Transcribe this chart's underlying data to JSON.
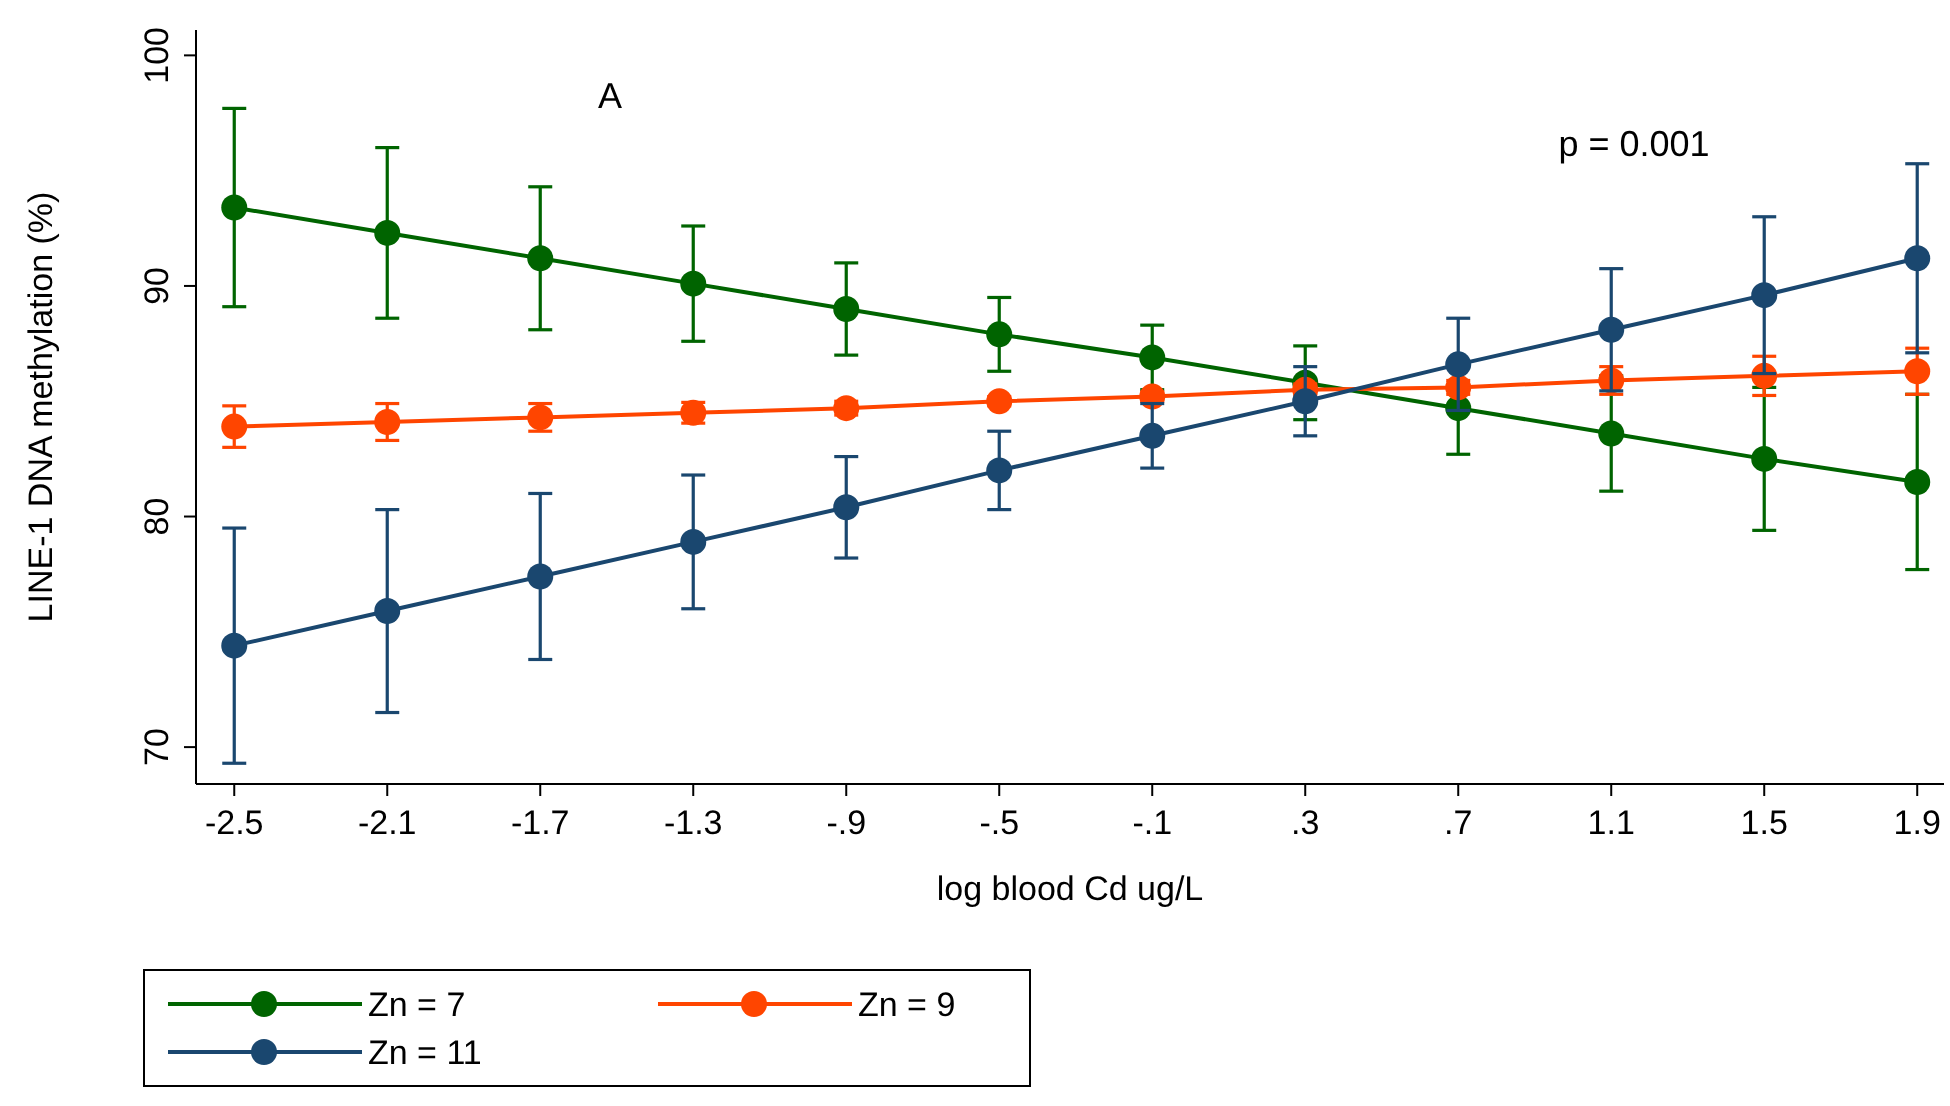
{
  "chart_data": {
    "type": "line",
    "xlabel": "log blood Cd ug/L",
    "ylabel": "LINE-1 DNA methylation (%)",
    "x": [
      -2.5,
      -2.1,
      -1.7,
      -1.3,
      -0.9,
      -0.5,
      -0.1,
      0.3,
      0.7,
      1.1,
      1.5,
      1.9
    ],
    "xlim": [
      -2.6,
      1.97
    ],
    "xticks": [
      -2.5,
      -2.1,
      -1.7,
      -1.3,
      {
        "value": -0.9,
        "label": "-.9"
      },
      {
        "value": -0.5,
        "label": "-.5"
      },
      {
        "value": -0.1,
        "label": "-.1"
      },
      {
        "value": 0.3,
        "label": ".3"
      },
      {
        "value": 0.7,
        "label": ".7"
      },
      1.1,
      1.5,
      1.9
    ],
    "ylim": [
      68.4,
      101.1
    ],
    "yticks": [
      70,
      80,
      90,
      100
    ],
    "marker": "circle",
    "legend": "bottom left",
    "grid": false,
    "annotations": [
      "A",
      "p = 0.001"
    ],
    "series": [
      {
        "name": "Zn = 7",
        "color": "#006400",
        "values": [
          93.4,
          92.3,
          91.2,
          90.1,
          89.0,
          87.9,
          86.9,
          85.8,
          84.7,
          83.6,
          82.5,
          81.5
        ],
        "errors": [
          4.3,
          3.7,
          3.1,
          2.5,
          2.0,
          1.6,
          1.4,
          1.6,
          2.0,
          2.5,
          3.1,
          3.8
        ]
      },
      {
        "name": "Zn = 9",
        "color": "#ff4500",
        "values": [
          83.9,
          84.1,
          84.3,
          84.5,
          84.7,
          85.0,
          85.2,
          85.5,
          85.6,
          85.9,
          86.1,
          86.3
        ],
        "errors": [
          0.9,
          0.8,
          0.6,
          0.45,
          0.3,
          0.2,
          0.2,
          0.25,
          0.3,
          0.6,
          0.85,
          1.0
        ]
      },
      {
        "name": "Zn = 11",
        "color": "#1a476f",
        "values": [
          74.4,
          75.9,
          77.4,
          78.9,
          80.4,
          82.0,
          83.5,
          85.0,
          86.6,
          88.1,
          89.6,
          91.2
        ],
        "errors": [
          5.1,
          4.4,
          3.6,
          2.9,
          2.2,
          1.7,
          1.4,
          1.5,
          2.0,
          2.65,
          3.4,
          4.1
        ]
      }
    ]
  }
}
